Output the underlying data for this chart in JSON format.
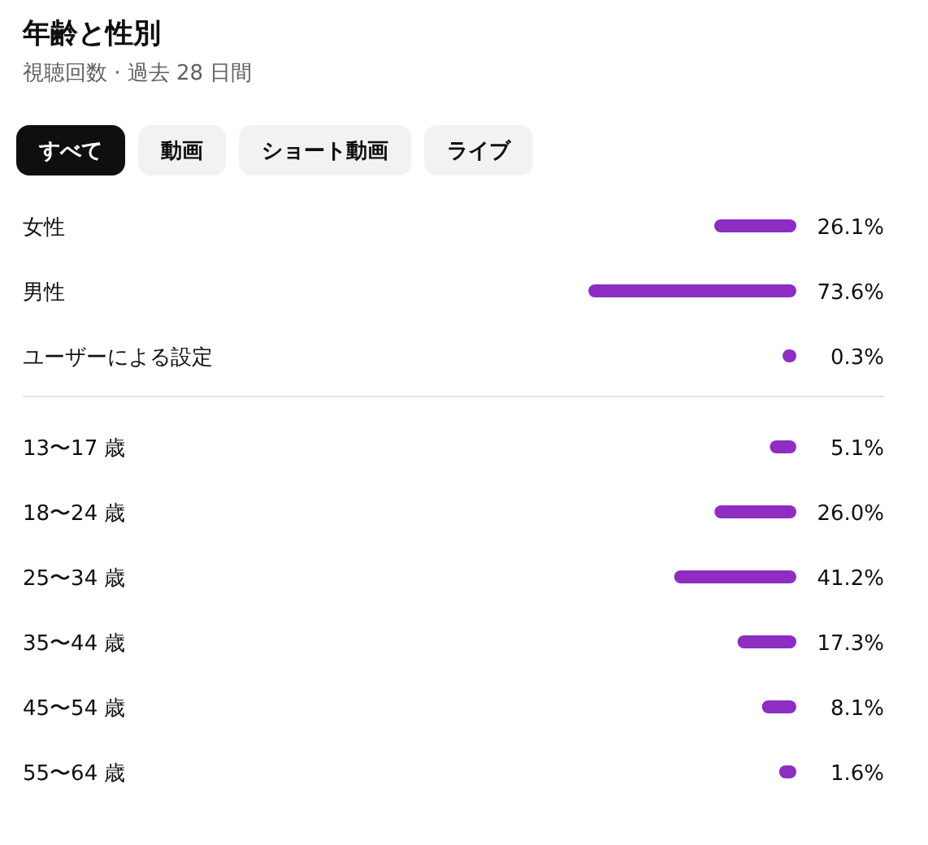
{
  "chart_data": [
    {
      "type": "bar",
      "orientation": "horizontal",
      "title": "年齢と性別",
      "subtitle": "視聴回数 · 過去 28 日間",
      "annotations": [
        "すべて",
        "動画",
        "ショート動画",
        "ライブ"
      ],
      "categories": [
        "女性",
        "男性",
        "ユーザーによる設定"
      ],
      "values": [
        26.1,
        73.6,
        0.3
      ],
      "value_labels": [
        "26.1%",
        "73.6%",
        "0.3%"
      ],
      "color": "#8e2dc2"
    },
    {
      "type": "bar",
      "orientation": "horizontal",
      "categories": [
        "13〜17 歳",
        "18〜24 歳",
        "25〜34 歳",
        "35〜44 歳",
        "45〜54 歳",
        "55〜64 歳"
      ],
      "values": [
        5.1,
        26.0,
        41.2,
        17.3,
        8.1,
        1.6
      ],
      "value_labels": [
        "5.1%",
        "26.0%",
        "41.2%",
        "17.3%",
        "8.1%",
        "1.6%"
      ],
      "color": "#8e2dc2"
    }
  ]
}
